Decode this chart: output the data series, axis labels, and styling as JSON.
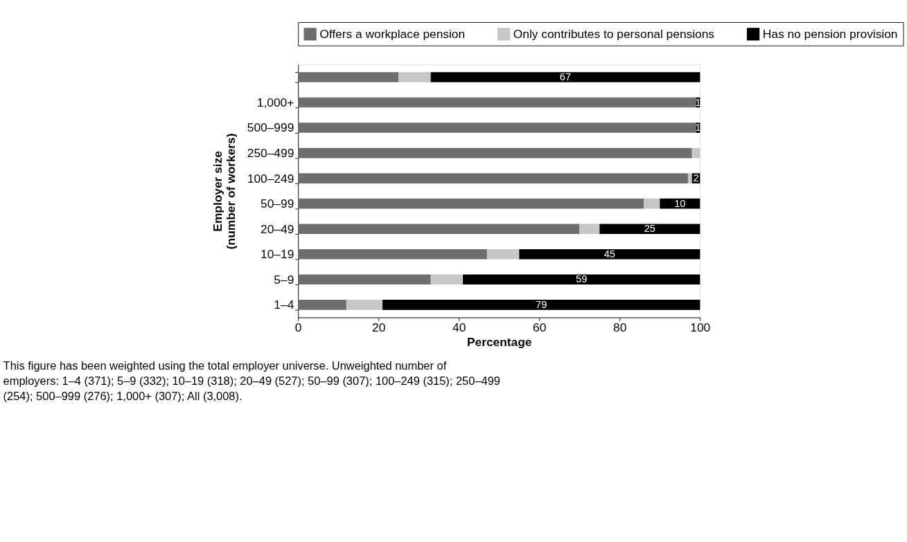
{
  "chart_data": {
    "type": "bar",
    "orientation": "horizontal",
    "stacked": true,
    "xlabel": "Percentage",
    "ylabel": "Employer size (number of workers)",
    "categories": [
      null,
      "1,000+",
      "500–999",
      "250–499",
      "100–249",
      "50–99",
      "20–49",
      "10–19",
      "5–9",
      "1–4"
    ],
    "series": [
      {
        "name": "Offers a workplace pension",
        "color": "#6d6e70",
        "values": [
          25,
          99,
          99,
          98,
          97,
          86,
          70,
          47,
          33,
          12
        ]
      },
      {
        "name": "Only contributes to personal pensions",
        "color": "#c6c7c8",
        "values": [
          8,
          0,
          0,
          2,
          1,
          4,
          5,
          8,
          8,
          9
        ]
      },
      {
        "name": "Has no pension provision",
        "color": "#000000",
        "values": [
          67,
          1,
          1,
          0,
          2,
          10,
          25,
          45,
          59,
          79
        ],
        "value_labels": [
          "67",
          "1",
          "1",
          null,
          "2",
          "10",
          "25",
          "45",
          "59",
          "79"
        ]
      }
    ],
    "xlim": [
      0,
      100
    ],
    "xticks": [
      0,
      20,
      40,
      60,
      80,
      100
    ],
    "grid": false,
    "legend": "top",
    "annotations": [
      "This figure has been weighted using the total employer universe. Unweighted number of employers: 1–4 (371); 5–9 (332); 10–19 (318); 20–49 (527); 50–99 (307); 100–249 (315); 250–499 (254); 500–999 (276); 1,000+ (307); All (3,008)."
    ]
  }
}
